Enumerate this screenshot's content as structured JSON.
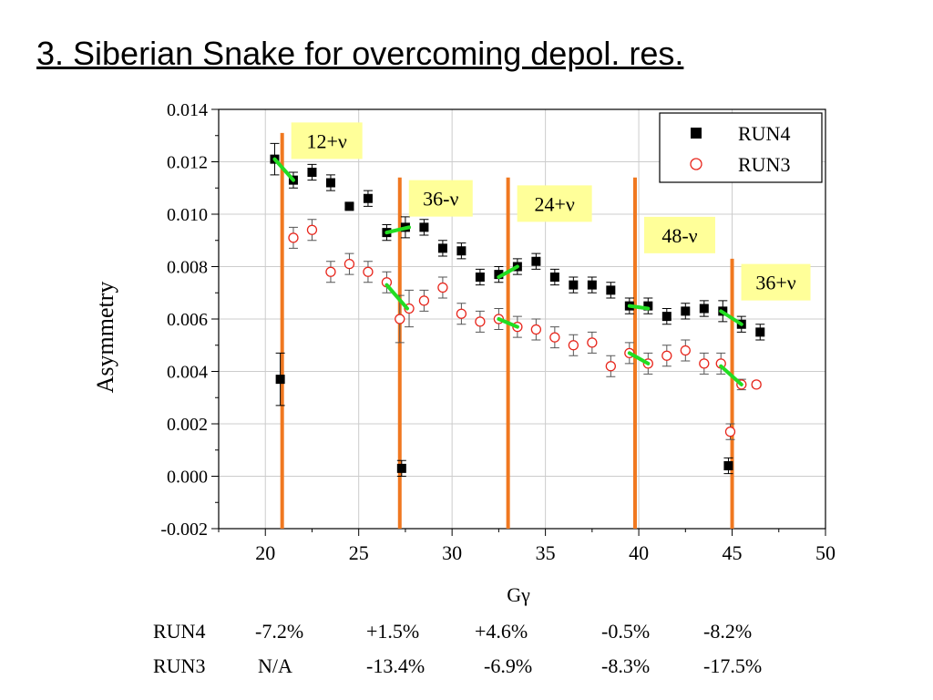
{
  "title": "3. Siberian Snake for overcoming depol. res.",
  "chart_data": {
    "type": "scatter",
    "xlabel": "Gγ",
    "ylabel": "Asymmetry",
    "xlim": [
      17.5,
      50
    ],
    "ylim": [
      -0.002,
      0.014
    ],
    "xticks": [
      "20",
      "25",
      "30",
      "35",
      "40",
      "45",
      "50"
    ],
    "yticks": [
      "-0.002",
      "0.000",
      "0.002",
      "0.004",
      "0.006",
      "0.008",
      "0.010",
      "0.012",
      "0.014"
    ],
    "grid": true,
    "legend_position": "top-right",
    "series": [
      {
        "name": "RUN4",
        "marker": "filled-square",
        "color": "#000000",
        "points": [
          {
            "x": 20.5,
            "y": 0.0121,
            "err": 0.0006
          },
          {
            "x": 21.5,
            "y": 0.0113,
            "err": 0.0003
          },
          {
            "x": 22.5,
            "y": 0.0116,
            "err": 0.0003
          },
          {
            "x": 23.5,
            "y": 0.0112,
            "err": 0.0003
          },
          {
            "x": 24.5,
            "y": 0.0103,
            "err": 0.0001
          },
          {
            "x": 25.5,
            "y": 0.0106,
            "err": 0.0003
          },
          {
            "x": 26.5,
            "y": 0.0093,
            "err": 0.0003
          },
          {
            "x": 27.5,
            "y": 0.0095,
            "err": 0.0004
          },
          {
            "x": 28.5,
            "y": 0.0095,
            "err": 0.0003
          },
          {
            "x": 29.5,
            "y": 0.0087,
            "err": 0.0003
          },
          {
            "x": 30.5,
            "y": 0.0086,
            "err": 0.0003
          },
          {
            "x": 31.5,
            "y": 0.0076,
            "err": 0.0003
          },
          {
            "x": 32.5,
            "y": 0.0077,
            "err": 0.0003
          },
          {
            "x": 33.5,
            "y": 0.008,
            "err": 0.0003
          },
          {
            "x": 34.5,
            "y": 0.0082,
            "err": 0.0003
          },
          {
            "x": 35.5,
            "y": 0.0076,
            "err": 0.0003
          },
          {
            "x": 36.5,
            "y": 0.0073,
            "err": 0.0003
          },
          {
            "x": 37.5,
            "y": 0.0073,
            "err": 0.0003
          },
          {
            "x": 38.5,
            "y": 0.0071,
            "err": 0.0003
          },
          {
            "x": 39.5,
            "y": 0.0065,
            "err": 0.0003
          },
          {
            "x": 40.5,
            "y": 0.0065,
            "err": 0.0003
          },
          {
            "x": 41.5,
            "y": 0.0061,
            "err": 0.0003
          },
          {
            "x": 42.5,
            "y": 0.0063,
            "err": 0.0003
          },
          {
            "x": 43.5,
            "y": 0.0064,
            "err": 0.0003
          },
          {
            "x": 44.5,
            "y": 0.0063,
            "err": 0.0004
          },
          {
            "x": 45.5,
            "y": 0.0058,
            "err": 0.0003
          },
          {
            "x": 46.5,
            "y": 0.0055,
            "err": 0.0003
          },
          {
            "x": 20.8,
            "y": 0.0037,
            "err": 0.001
          },
          {
            "x": 27.3,
            "y": 0.0003,
            "err": 0.0003
          },
          {
            "x": 44.8,
            "y": 0.0004,
            "err": 0.0003
          }
        ]
      },
      {
        "name": "RUN3",
        "marker": "open-circle",
        "color": "#e8261c",
        "points": [
          {
            "x": 21.5,
            "y": 0.0091,
            "err": 0.0004
          },
          {
            "x": 22.5,
            "y": 0.0094,
            "err": 0.0004
          },
          {
            "x": 23.5,
            "y": 0.0078,
            "err": 0.0004
          },
          {
            "x": 24.5,
            "y": 0.0081,
            "err": 0.0004
          },
          {
            "x": 25.5,
            "y": 0.0078,
            "err": 0.0004
          },
          {
            "x": 26.5,
            "y": 0.0074,
            "err": 0.0004
          },
          {
            "x": 27.2,
            "y": 0.006,
            "err": 0.0009
          },
          {
            "x": 27.7,
            "y": 0.0064,
            "err": 0.0007
          },
          {
            "x": 28.5,
            "y": 0.0067,
            "err": 0.0004
          },
          {
            "x": 29.5,
            "y": 0.0072,
            "err": 0.0004
          },
          {
            "x": 30.5,
            "y": 0.0062,
            "err": 0.0004
          },
          {
            "x": 31.5,
            "y": 0.0059,
            "err": 0.0004
          },
          {
            "x": 32.5,
            "y": 0.006,
            "err": 0.0004
          },
          {
            "x": 33.5,
            "y": 0.0057,
            "err": 0.0004
          },
          {
            "x": 34.5,
            "y": 0.0056,
            "err": 0.0004
          },
          {
            "x": 35.5,
            "y": 0.0053,
            "err": 0.0004
          },
          {
            "x": 36.5,
            "y": 0.005,
            "err": 0.0004
          },
          {
            "x": 37.5,
            "y": 0.0051,
            "err": 0.0004
          },
          {
            "x": 38.5,
            "y": 0.0042,
            "err": 0.0004
          },
          {
            "x": 39.5,
            "y": 0.0047,
            "err": 0.0004
          },
          {
            "x": 40.5,
            "y": 0.0043,
            "err": 0.0004
          },
          {
            "x": 41.5,
            "y": 0.0046,
            "err": 0.0004
          },
          {
            "x": 42.5,
            "y": 0.0048,
            "err": 0.0004
          },
          {
            "x": 43.5,
            "y": 0.0043,
            "err": 0.0004
          },
          {
            "x": 44.4,
            "y": 0.0043,
            "err": 0.0004
          },
          {
            "x": 44.9,
            "y": 0.0017,
            "err": 0.0003
          },
          {
            "x": 45.5,
            "y": 0.0035,
            "err": 0.0002
          },
          {
            "x": 46.3,
            "y": 0.0035,
            "err": 0.0001
          }
        ]
      }
    ],
    "resonances": [
      {
        "label": "12+ν",
        "x": 20.9,
        "y_top": 0.0131,
        "label_y": 0.0135
      },
      {
        "label": "36-ν",
        "x": 27.2,
        "y_top": 0.0114,
        "label_y": 0.0113
      },
      {
        "label": "24+ν",
        "x": 33.0,
        "y_top": 0.0114,
        "label_y": 0.0111
      },
      {
        "label": "48-ν",
        "x": 39.8,
        "y_top": 0.0114,
        "label_y": 0.0099
      },
      {
        "label": "36+ν",
        "x": 45.0,
        "y_top": 0.0083,
        "label_y": 0.0081
      }
    ],
    "resonance_color": "#f07820",
    "label_box_color": "#ffff99",
    "jump_color": "#22dd22",
    "jumps": [
      {
        "x1": 20.5,
        "y1": 0.0121,
        "x2": 21.5,
        "y2": 0.0113
      },
      {
        "x1": 26.5,
        "y1": 0.0093,
        "x2": 27.7,
        "y2": 0.0095
      },
      {
        "x1": 26.5,
        "y1": 0.0073,
        "x2": 27.6,
        "y2": 0.0064
      },
      {
        "x1": 32.5,
        "y1": 0.0076,
        "x2": 33.5,
        "y2": 0.008
      },
      {
        "x1": 32.5,
        "y1": 0.006,
        "x2": 33.5,
        "y2": 0.0057
      },
      {
        "x1": 39.5,
        "y1": 0.0065,
        "x2": 40.5,
        "y2": 0.0064
      },
      {
        "x1": 39.5,
        "y1": 0.0047,
        "x2": 40.5,
        "y2": 0.0043
      },
      {
        "x1": 44.4,
        "y1": 0.0063,
        "x2": 45.5,
        "y2": 0.0058
      },
      {
        "x1": 44.4,
        "y1": 0.0042,
        "x2": 45.5,
        "y2": 0.0035
      }
    ]
  },
  "table": {
    "rows": [
      {
        "label": "RUN4",
        "values": [
          "-7.2%",
          "+1.5%",
          "+4.6%",
          "-0.5%",
          "-8.2%"
        ]
      },
      {
        "label": "RUN3",
        "values": [
          "N/A",
          "-13.4%",
          "-6.9%",
          "-8.3%",
          "-17.5%"
        ]
      }
    ]
  }
}
